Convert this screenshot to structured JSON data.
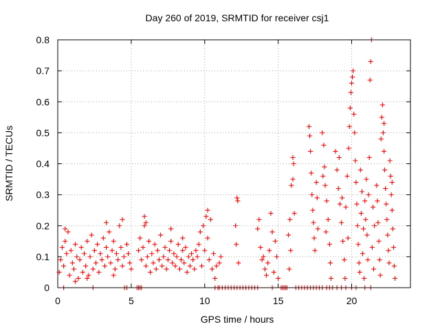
{
  "chart_data": {
    "type": "scatter",
    "title": "Day 260 of 2019, SRMTID for receiver csj1",
    "xlabel": "GPS time / hours",
    "ylabel": "SRMTID / TECUs",
    "xlim": [
      0,
      24
    ],
    "ylim": [
      0,
      0.8
    ],
    "x_ticks": [
      0,
      5,
      10,
      15,
      20
    ],
    "y_ticks": [
      0,
      0.1,
      0.2,
      0.3,
      0.4,
      0.5,
      0.6,
      0.7,
      0.8
    ],
    "x_tick_labels": [
      "0",
      "5",
      "10",
      "15",
      "20"
    ],
    "y_tick_labels": [
      "0",
      "0.1",
      "0.2",
      "0.3",
      "0.4",
      "0.5",
      "0.6",
      "0.7",
      "0.8"
    ],
    "grid": true,
    "marker": "+",
    "series_color": "#ff0000",
    "series": [
      {
        "name": "SRMTID",
        "points": [
          [
            0.1,
            0.05
          ],
          [
            0.2,
            0.09
          ],
          [
            0.3,
            0.13
          ],
          [
            0.4,
            0.07
          ],
          [
            0.5,
            0.15
          ],
          [
            0.6,
            0.11
          ],
          [
            0.7,
            0.18
          ],
          [
            0.8,
            0.04
          ],
          [
            0.9,
            0.12
          ],
          [
            1.0,
            0.08
          ],
          [
            1.1,
            0.06
          ],
          [
            1.2,
            0.14
          ],
          [
            1.3,
            0.1
          ],
          [
            1.4,
            0.03
          ],
          [
            1.5,
            0.09
          ],
          [
            1.6,
            0.13
          ],
          [
            1.7,
            0.05
          ],
          [
            1.8,
            0.11
          ],
          [
            1.9,
            0.07
          ],
          [
            2.0,
            0.15
          ],
          [
            2.1,
            0.04
          ],
          [
            2.2,
            0.1
          ],
          [
            2.3,
            0.17
          ],
          [
            2.4,
            0.06
          ],
          [
            2.5,
            0.12
          ],
          [
            2.6,
            0.08
          ],
          [
            2.7,
            0.14
          ],
          [
            2.8,
            0.05
          ],
          [
            2.9,
            0.11
          ],
          [
            3.0,
            0.09
          ],
          [
            3.1,
            0.16
          ],
          [
            3.2,
            0.07
          ],
          [
            3.3,
            0.13
          ],
          [
            3.4,
            0.1
          ],
          [
            3.5,
            0.18
          ],
          [
            3.6,
            0.08
          ],
          [
            3.7,
            0.12
          ],
          [
            3.8,
            0.15
          ],
          [
            3.9,
            0.06
          ],
          [
            4.0,
            0.11
          ],
          [
            4.1,
            0.09
          ],
          [
            4.2,
            0.2
          ],
          [
            4.3,
            0.13
          ],
          [
            4.4,
            0.07
          ],
          [
            4.5,
            0.1
          ],
          [
            0.5,
            0.19
          ],
          [
            1.2,
            0.02
          ],
          [
            2.0,
            0.03
          ],
          [
            3.3,
            0.21
          ],
          [
            4.4,
            0.22
          ],
          [
            3.8,
            0.04
          ],
          [
            4.7,
            0.14
          ],
          [
            4.8,
            0.11
          ],
          [
            4.9,
            0.08
          ],
          [
            5.0,
            0.06
          ],
          [
            5.5,
            0.12
          ],
          [
            5.6,
            0.16
          ],
          [
            5.7,
            0.09
          ],
          [
            5.8,
            0.13
          ],
          [
            5.9,
            0.2
          ],
          [
            6.0,
            0.07
          ],
          [
            6.1,
            0.1
          ],
          [
            6.2,
            0.15
          ],
          [
            6.3,
            0.05
          ],
          [
            6.4,
            0.11
          ],
          [
            6.5,
            0.08
          ],
          [
            6.6,
            0.14
          ],
          [
            6.7,
            0.06
          ],
          [
            6.8,
            0.12
          ],
          [
            6.9,
            0.09
          ],
          [
            7.0,
            0.17
          ],
          [
            7.1,
            0.07
          ],
          [
            7.2,
            0.1
          ],
          [
            7.3,
            0.13
          ],
          [
            7.4,
            0.06
          ],
          [
            7.5,
            0.09
          ],
          [
            7.6,
            0.12
          ],
          [
            7.7,
            0.15
          ],
          [
            7.8,
            0.08
          ],
          [
            7.9,
            0.11
          ],
          [
            8.0,
            0.07
          ],
          [
            8.1,
            0.1
          ],
          [
            8.2,
            0.14
          ],
          [
            8.3,
            0.06
          ],
          [
            8.4,
            0.09
          ],
          [
            8.5,
            0.12
          ],
          [
            8.6,
            0.08
          ],
          [
            8.7,
            0.13
          ],
          [
            8.8,
            0.05
          ],
          [
            8.9,
            0.1
          ],
          [
            9.0,
            0.07
          ],
          [
            9.1,
            0.11
          ],
          [
            9.2,
            0.09
          ],
          [
            9.3,
            0.06
          ],
          [
            9.4,
            0.12
          ],
          [
            5.9,
            0.23
          ],
          [
            6.0,
            0.21
          ],
          [
            7.7,
            0.19
          ],
          [
            8.5,
            0.16
          ],
          [
            9.5,
            0.1
          ],
          [
            9.6,
            0.14
          ],
          [
            9.7,
            0.18
          ],
          [
            9.8,
            0.07
          ],
          [
            9.9,
            0.2
          ],
          [
            10.0,
            0.12
          ],
          [
            10.1,
            0.23
          ],
          [
            10.2,
            0.16
          ],
          [
            10.3,
            0.09
          ],
          [
            10.4,
            0.22
          ],
          [
            10.5,
            0.06
          ],
          [
            10.6,
            0.11
          ],
          [
            10.7,
            0.03
          ],
          [
            10.8,
            0.07
          ],
          [
            10.2,
            0.25
          ],
          [
            11.0,
            0.08
          ],
          [
            11.1,
            0.1
          ],
          [
            12.2,
            0.29
          ],
          [
            12.25,
            0.28
          ],
          [
            12.1,
            0.2
          ],
          [
            12.15,
            0.14
          ],
          [
            12.3,
            0.08
          ],
          [
            13.6,
            0.19
          ],
          [
            13.7,
            0.22
          ],
          [
            13.8,
            0.13
          ],
          [
            13.9,
            0.09
          ],
          [
            14.0,
            0.1
          ],
          [
            14.1,
            0.06
          ],
          [
            14.2,
            0.04
          ],
          [
            14.3,
            0.08
          ],
          [
            14.4,
            0.12
          ],
          [
            14.5,
            0.24
          ],
          [
            14.6,
            0.18
          ],
          [
            14.7,
            0.05
          ],
          [
            14.8,
            0.15
          ],
          [
            14.9,
            0.1
          ],
          [
            15.0,
            0.03
          ],
          [
            15.7,
            0.17
          ],
          [
            15.8,
            0.22
          ],
          [
            15.9,
            0.33
          ],
          [
            16.0,
            0.35
          ],
          [
            16.05,
            0.4
          ],
          [
            16.0,
            0.42
          ],
          [
            16.1,
            0.24
          ],
          [
            15.75,
            0.06
          ],
          [
            15.85,
            0.12
          ],
          [
            17.1,
            0.52
          ],
          [
            17.15,
            0.49
          ],
          [
            17.2,
            0.44
          ],
          [
            17.25,
            0.37
          ],
          [
            17.3,
            0.3
          ],
          [
            17.35,
            0.25
          ],
          [
            17.4,
            0.21
          ],
          [
            17.45,
            0.16
          ],
          [
            17.5,
            0.12
          ],
          [
            17.6,
            0.34
          ],
          [
            17.65,
            0.29
          ],
          [
            17.7,
            0.19
          ],
          [
            18.0,
            0.5
          ],
          [
            18.1,
            0.46
          ],
          [
            18.15,
            0.39
          ],
          [
            18.2,
            0.33
          ],
          [
            18.3,
            0.28
          ],
          [
            18.4,
            0.22
          ],
          [
            18.5,
            0.14
          ],
          [
            18.55,
            0.08
          ],
          [
            18.6,
            0.03
          ],
          [
            18.05,
            0.36
          ],
          [
            18.25,
            0.18
          ],
          [
            18.9,
            0.44
          ],
          [
            19.0,
            0.38
          ],
          [
            19.1,
            0.32
          ],
          [
            19.2,
            0.27
          ],
          [
            19.3,
            0.21
          ],
          [
            19.4,
            0.15
          ],
          [
            19.5,
            0.09
          ],
          [
            19.55,
            0.03
          ],
          [
            19.35,
            0.29
          ],
          [
            19.15,
            0.42
          ],
          [
            19.6,
            0.26
          ],
          [
            19.7,
            0.36
          ],
          [
            19.8,
            0.45
          ],
          [
            19.85,
            0.52
          ],
          [
            19.9,
            0.58
          ],
          [
            19.95,
            0.63
          ],
          [
            20.0,
            0.66
          ],
          [
            20.05,
            0.68
          ],
          [
            20.1,
            0.7
          ],
          [
            20.15,
            0.56
          ],
          [
            20.2,
            0.5
          ],
          [
            20.25,
            0.41
          ],
          [
            20.3,
            0.34
          ],
          [
            20.35,
            0.27
          ],
          [
            20.4,
            0.2
          ],
          [
            20.45,
            0.14
          ],
          [
            20.5,
            0.08
          ],
          [
            20.55,
            0.05
          ],
          [
            19.75,
            0.16
          ],
          [
            20.6,
            0.38
          ],
          [
            20.65,
            0.24
          ],
          [
            20.7,
            0.31
          ],
          [
            20.75,
            0.11
          ],
          [
            20.8,
            0.19
          ],
          [
            20.85,
            0.03
          ],
          [
            20.9,
            0.28
          ],
          [
            20.95,
            0.22
          ],
          [
            21.0,
            0.35
          ],
          [
            21.05,
            0.17
          ],
          [
            21.1,
            0.09
          ],
          [
            21.15,
            0.3
          ],
          [
            21.2,
            0.42
          ],
          [
            21.25,
            0.67
          ],
          [
            21.3,
            0.73
          ],
          [
            21.35,
            0.8
          ],
          [
            21.4,
            0.13
          ],
          [
            21.45,
            0.26
          ],
          [
            21.5,
            0.06
          ],
          [
            21.55,
            0.2
          ],
          [
            21.7,
            0.33
          ],
          [
            21.75,
            0.28
          ],
          [
            21.8,
            0.21
          ],
          [
            21.85,
            0.15
          ],
          [
            21.9,
            0.09
          ],
          [
            21.95,
            0.04
          ],
          [
            22.0,
            0.48
          ],
          [
            22.05,
            0.55
          ],
          [
            22.1,
            0.59
          ],
          [
            22.15,
            0.5
          ],
          [
            22.2,
            0.44
          ],
          [
            22.25,
            0.38
          ],
          [
            22.3,
            0.32
          ],
          [
            22.35,
            0.27
          ],
          [
            22.4,
            0.22
          ],
          [
            22.45,
            0.17
          ],
          [
            22.5,
            0.12
          ],
          [
            22.55,
            0.08
          ],
          [
            22.6,
            0.41
          ],
          [
            22.65,
            0.36
          ],
          [
            22.7,
            0.3
          ],
          [
            22.75,
            0.25
          ],
          [
            22.8,
            0.19
          ],
          [
            22.85,
            0.13
          ],
          [
            22.9,
            0.07
          ],
          [
            22.95,
            0.03
          ],
          [
            22.75,
            0.34
          ],
          [
            22.2,
            0.53
          ],
          [
            4.55,
            0.0
          ],
          [
            4.7,
            0.0
          ],
          [
            5.4,
            0.0
          ],
          [
            5.5,
            0.0
          ],
          [
            5.6,
            0.0
          ],
          [
            5.7,
            0.0
          ],
          [
            10.7,
            0.0
          ],
          [
            10.9,
            0.0
          ],
          [
            11.0,
            0.0
          ],
          [
            11.2,
            0.0
          ],
          [
            11.4,
            0.0
          ],
          [
            11.6,
            0.0
          ],
          [
            11.8,
            0.0
          ],
          [
            12.0,
            0.0
          ],
          [
            12.2,
            0.0
          ],
          [
            12.4,
            0.0
          ],
          [
            12.6,
            0.0
          ],
          [
            12.8,
            0.0
          ],
          [
            13.0,
            0.0
          ],
          [
            13.2,
            0.0
          ],
          [
            13.4,
            0.0
          ],
          [
            13.6,
            0.0
          ],
          [
            14.6,
            0.0
          ],
          [
            15.2,
            0.0
          ],
          [
            15.3,
            0.0
          ],
          [
            15.4,
            0.0
          ],
          [
            15.5,
            0.0
          ],
          [
            15.6,
            0.0
          ],
          [
            16.2,
            0.0
          ],
          [
            16.4,
            0.0
          ],
          [
            16.6,
            0.0
          ],
          [
            16.8,
            0.0
          ],
          [
            17.0,
            0.0
          ],
          [
            17.2,
            0.0
          ],
          [
            17.4,
            0.0
          ],
          [
            17.6,
            0.0
          ],
          [
            17.8,
            0.0
          ],
          [
            18.0,
            0.0
          ],
          [
            18.3,
            0.0
          ],
          [
            18.5,
            0.0
          ],
          [
            18.7,
            0.0
          ],
          [
            19.0,
            0.0
          ],
          [
            19.3,
            0.0
          ],
          [
            19.6,
            0.0
          ],
          [
            20.0,
            0.0
          ],
          [
            20.3,
            0.0
          ],
          [
            20.9,
            0.0
          ],
          [
            21.3,
            0.0
          ],
          [
            0.4,
            0.0
          ],
          [
            2.4,
            0.0
          ]
        ]
      }
    ]
  }
}
